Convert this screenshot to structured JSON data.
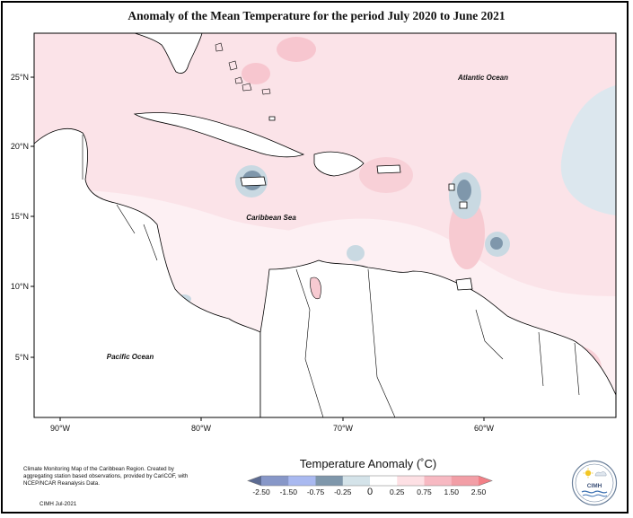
{
  "title": "Anomaly of the Mean Temperature for the period July 2020 to June 2021",
  "axes": {
    "lat_labels": [
      "25°N",
      "20°N",
      "15°N",
      "10°N",
      "5°N"
    ],
    "lon_labels": [
      "90°W",
      "80°W",
      "70°W",
      "60°W"
    ]
  },
  "place_labels": {
    "atlantic": "Atlantic Ocean",
    "caribbean": "Caribbean Sea",
    "pacific": "Pacific Ocean"
  },
  "legend": {
    "title": "Temperature Anomaly (˚C)",
    "tick_labels": [
      "-2.50",
      "-1.50",
      "-0.75",
      "-0.25",
      "0",
      "0.25",
      "0.75",
      "1.50",
      "2.50"
    ],
    "colors": [
      "#5c6b92",
      "#8797c8",
      "#a9b9f0",
      "#7f97ab",
      "#d4e3e9",
      "#ffffff",
      "#fde0e4",
      "#f7b9c2",
      "#f29ea6",
      "#f27f86"
    ]
  },
  "credit": {
    "text": "Climate Monitoring Map of the Caribbean Region. Created by aggregating station based observations, provided by CariCOF, with NCEP/NCAR Reanalysis Data.",
    "date": "CIMH Jul-2021"
  },
  "logo": {
    "text": "CIMH"
  }
}
